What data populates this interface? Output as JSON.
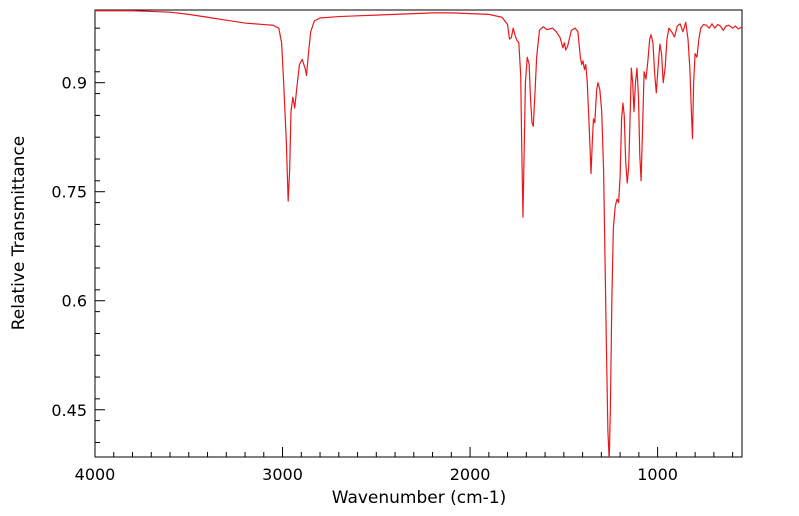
{
  "chart_data": {
    "type": "line",
    "title": "",
    "xlabel": "Wavenumber (cm-1)",
    "ylabel": "Relative Transmittance",
    "xlim": [
      4000,
      550
    ],
    "ylim": [
      0.385,
      1.0
    ],
    "x_reversed": true,
    "grid": false,
    "legend": "none",
    "line_color": "#e8191c",
    "x_ticks": [
      {
        "value": 4000,
        "label": "4000"
      },
      {
        "value": 3000,
        "label": "3000"
      },
      {
        "value": 2000,
        "label": "2000"
      },
      {
        "value": 1000,
        "label": "1000"
      }
    ],
    "y_ticks": [
      {
        "value": 0.9,
        "label": "0.9"
      },
      {
        "value": 0.75,
        "label": "0.75"
      },
      {
        "value": 0.6,
        "label": "0.6"
      },
      {
        "value": 0.45,
        "label": "0.45"
      }
    ],
    "series": [
      {
        "points": [
          [
            4000,
            0.999
          ],
          [
            3800,
            0.999
          ],
          [
            3700,
            0.998
          ],
          [
            3600,
            0.997
          ],
          [
            3500,
            0.994
          ],
          [
            3400,
            0.99
          ],
          [
            3300,
            0.986
          ],
          [
            3200,
            0.982
          ],
          [
            3100,
            0.98
          ],
          [
            3050,
            0.979
          ],
          [
            3020,
            0.975
          ],
          [
            3005,
            0.955
          ],
          [
            2995,
            0.905
          ],
          [
            2980,
            0.82
          ],
          [
            2970,
            0.737
          ],
          [
            2962,
            0.78
          ],
          [
            2955,
            0.86
          ],
          [
            2945,
            0.88
          ],
          [
            2935,
            0.865
          ],
          [
            2925,
            0.89
          ],
          [
            2910,
            0.925
          ],
          [
            2895,
            0.932
          ],
          [
            2880,
            0.92
          ],
          [
            2872,
            0.91
          ],
          [
            2862,
            0.94
          ],
          [
            2850,
            0.97
          ],
          [
            2830,
            0.985
          ],
          [
            2800,
            0.989
          ],
          [
            2700,
            0.991
          ],
          [
            2600,
            0.992
          ],
          [
            2500,
            0.993
          ],
          [
            2400,
            0.994
          ],
          [
            2300,
            0.995
          ],
          [
            2200,
            0.996
          ],
          [
            2100,
            0.996
          ],
          [
            2000,
            0.995
          ],
          [
            1900,
            0.994
          ],
          [
            1830,
            0.99
          ],
          [
            1800,
            0.98
          ],
          [
            1790,
            0.96
          ],
          [
            1780,
            0.962
          ],
          [
            1770,
            0.975
          ],
          [
            1760,
            0.965
          ],
          [
            1750,
            0.958
          ],
          [
            1740,
            0.955
          ],
          [
            1730,
            0.91
          ],
          [
            1725,
            0.82
          ],
          [
            1718,
            0.715
          ],
          [
            1712,
            0.8
          ],
          [
            1705,
            0.9
          ],
          [
            1695,
            0.935
          ],
          [
            1685,
            0.925
          ],
          [
            1678,
            0.88
          ],
          [
            1670,
            0.845
          ],
          [
            1663,
            0.84
          ],
          [
            1655,
            0.88
          ],
          [
            1645,
            0.935
          ],
          [
            1630,
            0.972
          ],
          [
            1610,
            0.977
          ],
          [
            1590,
            0.973
          ],
          [
            1560,
            0.975
          ],
          [
            1540,
            0.97
          ],
          [
            1520,
            0.962
          ],
          [
            1505,
            0.948
          ],
          [
            1497,
            0.955
          ],
          [
            1490,
            0.945
          ],
          [
            1480,
            0.95
          ],
          [
            1460,
            0.972
          ],
          [
            1440,
            0.975
          ],
          [
            1425,
            0.97
          ],
          [
            1412,
            0.935
          ],
          [
            1405,
            0.925
          ],
          [
            1398,
            0.93
          ],
          [
            1390,
            0.918
          ],
          [
            1383,
            0.925
          ],
          [
            1375,
            0.9
          ],
          [
            1365,
            0.84
          ],
          [
            1355,
            0.775
          ],
          [
            1348,
            0.82
          ],
          [
            1342,
            0.85
          ],
          [
            1335,
            0.845
          ],
          [
            1325,
            0.89
          ],
          [
            1318,
            0.9
          ],
          [
            1308,
            0.89
          ],
          [
            1298,
            0.86
          ],
          [
            1288,
            0.78
          ],
          [
            1280,
            0.65
          ],
          [
            1272,
            0.52
          ],
          [
            1265,
            0.42
          ],
          [
            1258,
            0.38
          ],
          [
            1252,
            0.45
          ],
          [
            1244,
            0.6
          ],
          [
            1236,
            0.7
          ],
          [
            1226,
            0.73
          ],
          [
            1216,
            0.74
          ],
          [
            1208,
            0.735
          ],
          [
            1200,
            0.77
          ],
          [
            1192,
            0.85
          ],
          [
            1185,
            0.872
          ],
          [
            1178,
            0.855
          ],
          [
            1170,
            0.79
          ],
          [
            1162,
            0.762
          ],
          [
            1154,
            0.785
          ],
          [
            1146,
            0.86
          ],
          [
            1140,
            0.92
          ],
          [
            1133,
            0.9
          ],
          [
            1126,
            0.86
          ],
          [
            1118,
            0.9
          ],
          [
            1110,
            0.92
          ],
          [
            1102,
            0.88
          ],
          [
            1095,
            0.8
          ],
          [
            1088,
            0.765
          ],
          [
            1080,
            0.84
          ],
          [
            1072,
            0.915
          ],
          [
            1062,
            0.905
          ],
          [
            1052,
            0.93
          ],
          [
            1042,
            0.96
          ],
          [
            1035,
            0.966
          ],
          [
            1025,
            0.955
          ],
          [
            1015,
            0.91
          ],
          [
            1007,
            0.886
          ],
          [
            998,
            0.92
          ],
          [
            988,
            0.953
          ],
          [
            979,
            0.94
          ],
          [
            970,
            0.9
          ],
          [
            960,
            0.92
          ],
          [
            950,
            0.96
          ],
          [
            940,
            0.975
          ],
          [
            925,
            0.97
          ],
          [
            910,
            0.963
          ],
          [
            895,
            0.978
          ],
          [
            880,
            0.981
          ],
          [
            865,
            0.97
          ],
          [
            850,
            0.983
          ],
          [
            838,
            0.96
          ],
          [
            828,
            0.92
          ],
          [
            820,
            0.86
          ],
          [
            814,
            0.823
          ],
          [
            808,
            0.9
          ],
          [
            800,
            0.94
          ],
          [
            790,
            0.935
          ],
          [
            780,
            0.96
          ],
          [
            770,
            0.975
          ],
          [
            755,
            0.98
          ],
          [
            740,
            0.979
          ],
          [
            725,
            0.975
          ],
          [
            710,
            0.981
          ],
          [
            695,
            0.975
          ],
          [
            680,
            0.98
          ],
          [
            665,
            0.978
          ],
          [
            650,
            0.972
          ],
          [
            635,
            0.978
          ],
          [
            620,
            0.979
          ],
          [
            600,
            0.975
          ],
          [
            585,
            0.978
          ],
          [
            570,
            0.974
          ],
          [
            555,
            0.976
          ],
          [
            550,
            0.976
          ]
        ]
      }
    ]
  }
}
